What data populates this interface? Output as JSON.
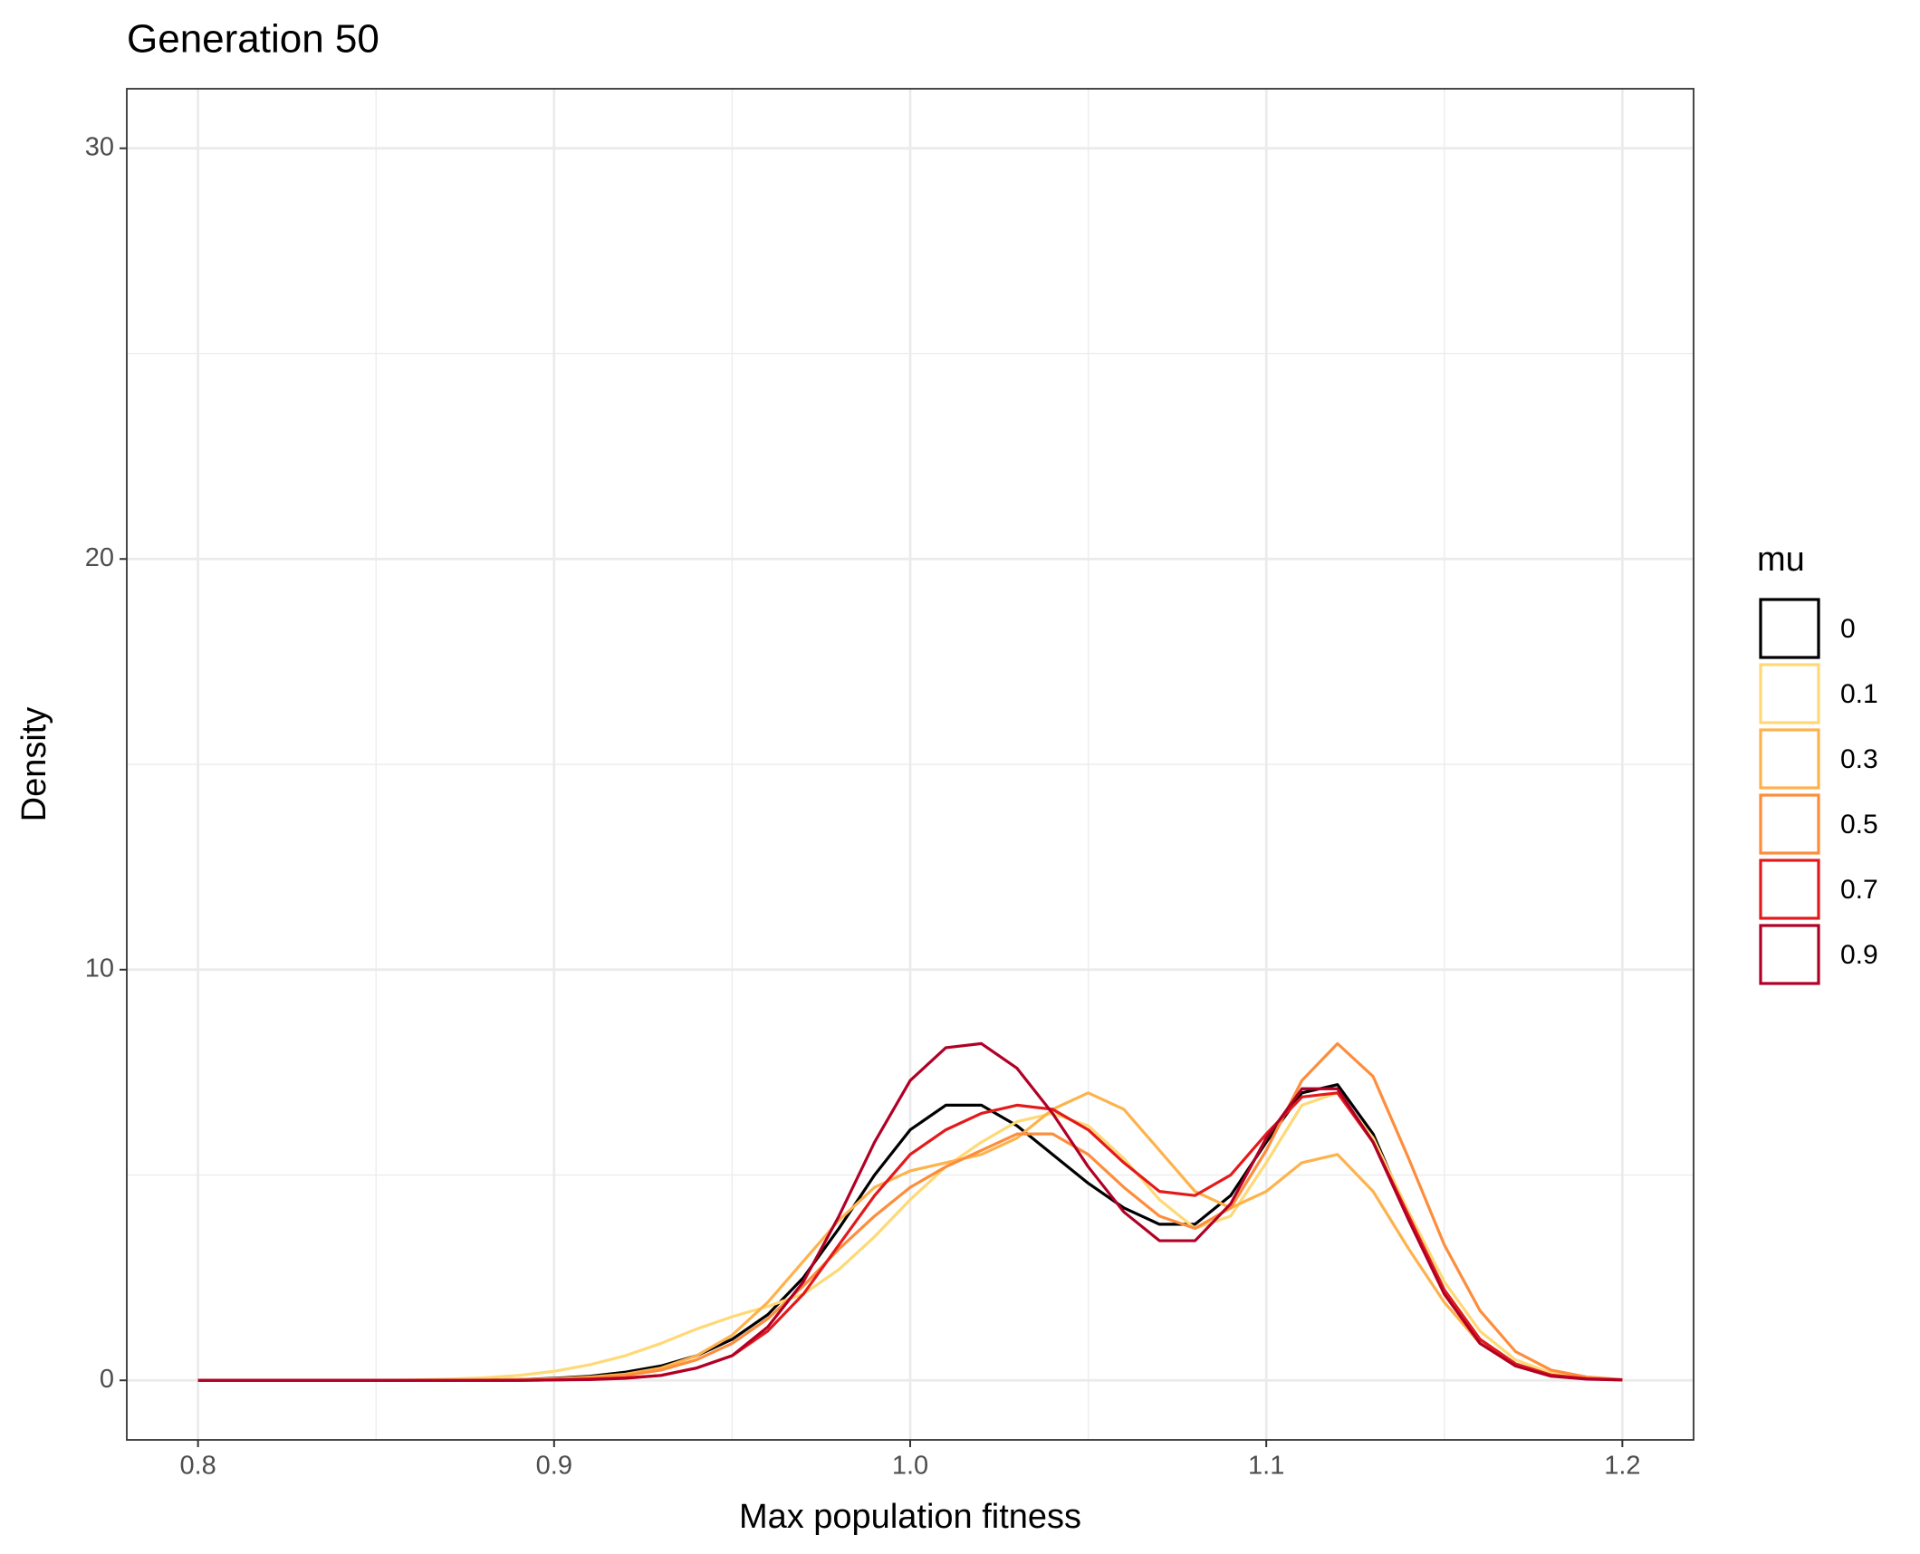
{
  "chart_data": {
    "type": "line",
    "title": "Generation 50",
    "x_label": "Max population fitness",
    "y_label": "Density",
    "legend_title": "mu",
    "legend_position": "right",
    "grid": true,
    "x": [
      0.8,
      0.81,
      0.82,
      0.83,
      0.84,
      0.85,
      0.86,
      0.87,
      0.88,
      0.89,
      0.9,
      0.91,
      0.92,
      0.93,
      0.94,
      0.95,
      0.96,
      0.97,
      0.98,
      0.99,
      1.0,
      1.01,
      1.02,
      1.03,
      1.04,
      1.05,
      1.06,
      1.07,
      1.08,
      1.09,
      1.1,
      1.11,
      1.12,
      1.13,
      1.14,
      1.15,
      1.16,
      1.17,
      1.18,
      1.19,
      1.2
    ],
    "xlim": [
      0.78,
      1.22
    ],
    "xticks": [
      0.8,
      0.9,
      {
        "value": 1,
        "label": "1.0"
      },
      1.1,
      1.2
    ],
    "ylim": [
      -1.45,
      31.45
    ],
    "yticks": [
      0,
      10,
      20,
      30
    ],
    "series": [
      {
        "name": "0",
        "color": "#000000",
        "values": [
          0,
          0,
          0,
          0,
          0,
          0,
          0,
          0,
          0.01,
          0.02,
          0.05,
          0.1,
          0.2,
          0.35,
          0.6,
          1.0,
          1.6,
          2.5,
          3.7,
          5.0,
          6.1,
          6.7,
          6.7,
          6.2,
          5.5,
          4.8,
          4.2,
          3.8,
          3.8,
          4.5,
          5.8,
          7.0,
          7.2,
          6.0,
          4.0,
          2.2,
          1.0,
          0.4,
          0.13,
          0.04,
          0.01
        ]
      },
      {
        "name": "0.1",
        "color": "#fed976",
        "values": [
          0,
          0,
          0,
          0,
          0,
          0,
          0.01,
          0.03,
          0.06,
          0.12,
          0.22,
          0.38,
          0.6,
          0.9,
          1.25,
          1.55,
          1.8,
          2.1,
          2.7,
          3.5,
          4.4,
          5.2,
          5.8,
          6.3,
          6.5,
          6.2,
          5.4,
          4.4,
          3.7,
          4.0,
          5.3,
          6.7,
          7.0,
          5.9,
          4.1,
          2.4,
          1.2,
          0.5,
          0.18,
          0.06,
          0.02
        ]
      },
      {
        "name": "0.3",
        "color": "#feb24c",
        "values": [
          0,
          0,
          0,
          0,
          0,
          0,
          0,
          0,
          0.01,
          0.02,
          0.04,
          0.08,
          0.15,
          0.3,
          0.6,
          1.1,
          1.9,
          2.9,
          3.9,
          4.7,
          5.1,
          5.3,
          5.5,
          5.9,
          6.6,
          7.0,
          6.6,
          5.6,
          4.6,
          4.2,
          4.6,
          5.3,
          5.5,
          4.6,
          3.2,
          1.9,
          0.9,
          0.35,
          0.12,
          0.04,
          0.01
        ]
      },
      {
        "name": "0.5",
        "color": "#fd8d3c",
        "values": [
          0,
          0,
          0,
          0,
          0,
          0,
          0,
          0,
          0,
          0.01,
          0.03,
          0.06,
          0.12,
          0.25,
          0.5,
          0.9,
          1.5,
          2.3,
          3.2,
          4.0,
          4.7,
          5.2,
          5.6,
          6.0,
          6.0,
          5.5,
          4.7,
          4.0,
          3.7,
          4.2,
          5.6,
          7.3,
          8.2,
          7.4,
          5.4,
          3.3,
          1.7,
          0.7,
          0.25,
          0.08,
          0.02
        ]
      },
      {
        "name": "0.7",
        "color": "#e31a1c",
        "values": [
          0,
          0,
          0,
          0,
          0,
          0,
          0,
          0,
          0,
          0,
          0.01,
          0.03,
          0.06,
          0.12,
          0.3,
          0.6,
          1.2,
          2.1,
          3.3,
          4.5,
          5.5,
          6.1,
          6.5,
          6.7,
          6.6,
          6.1,
          5.3,
          4.6,
          4.5,
          5.0,
          6.0,
          6.9,
          7.0,
          5.8,
          4.0,
          2.2,
          1.0,
          0.4,
          0.13,
          0.04,
          0.01
        ]
      },
      {
        "name": "0.9",
        "color": "#b10026",
        "values": [
          0,
          0,
          0,
          0,
          0,
          0,
          0,
          0,
          0,
          0,
          0.01,
          0.02,
          0.05,
          0.12,
          0.3,
          0.6,
          1.3,
          2.4,
          4.0,
          5.8,
          7.3,
          8.1,
          8.2,
          7.6,
          6.5,
          5.2,
          4.1,
          3.4,
          3.4,
          4.3,
          5.9,
          7.1,
          7.1,
          5.8,
          3.9,
          2.1,
          0.9,
          0.35,
          0.1,
          0.03,
          0.01
        ]
      }
    ]
  }
}
